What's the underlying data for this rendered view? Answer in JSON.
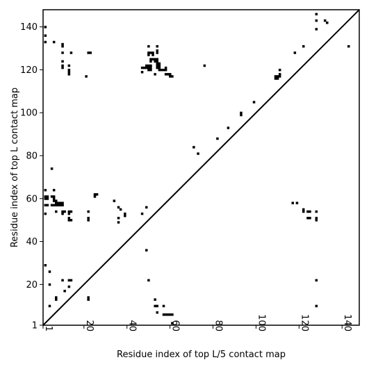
{
  "chart_data": {
    "type": "scatter",
    "title": "",
    "xlabel": "Residue index of top L/5 contact map",
    "ylabel": "Residue index of top L contact map",
    "xlim": [
      1,
      148
    ],
    "ylim": [
      1,
      148
    ],
    "xticks": [
      1,
      20,
      40,
      60,
      80,
      100,
      120,
      140
    ],
    "yticks": [
      1,
      20,
      40,
      60,
      80,
      100,
      120,
      140
    ],
    "diagonal": true,
    "marker": "square",
    "color": "#000000",
    "series": [
      {
        "points": [
          [
            2,
            140
          ],
          [
            2,
            136
          ],
          [
            2,
            133
          ],
          [
            6,
            133
          ],
          [
            10,
            132
          ],
          [
            10,
            131
          ],
          [
            10,
            128
          ],
          [
            10,
            124
          ],
          [
            10,
            122
          ],
          [
            10,
            121
          ],
          [
            13,
            122
          ],
          [
            13,
            120
          ],
          [
            13,
            119
          ],
          [
            13,
            118
          ],
          [
            14,
            128
          ],
          [
            22,
            128
          ],
          [
            23,
            128
          ],
          [
            21,
            117
          ],
          [
            47,
            121
          ],
          [
            48,
            121
          ],
          [
            49,
            121
          ],
          [
            49,
            122
          ],
          [
            50,
            122
          ],
          [
            50,
            121
          ],
          [
            50,
            120
          ],
          [
            51,
            121
          ],
          [
            51,
            120
          ],
          [
            51,
            122
          ],
          [
            50,
            131
          ],
          [
            50,
            128
          ],
          [
            51,
            128
          ],
          [
            52,
            128
          ],
          [
            52,
            127
          ],
          [
            50,
            127
          ],
          [
            51,
            124
          ],
          [
            51,
            125
          ],
          [
            52,
            125
          ],
          [
            53,
            125
          ],
          [
            53,
            124
          ],
          [
            54,
            125
          ],
          [
            54,
            124
          ],
          [
            54,
            123
          ],
          [
            54,
            122
          ],
          [
            54,
            121
          ],
          [
            55,
            123
          ],
          [
            55,
            122
          ],
          [
            55,
            121
          ],
          [
            55,
            120
          ],
          [
            54,
            131
          ],
          [
            54,
            129
          ],
          [
            54,
            128
          ],
          [
            56,
            120
          ],
          [
            57,
            120
          ],
          [
            58,
            120
          ],
          [
            58,
            121
          ],
          [
            58,
            118
          ],
          [
            59,
            118
          ],
          [
            60,
            118
          ],
          [
            60,
            117
          ],
          [
            61,
            117
          ],
          [
            47,
            119
          ],
          [
            53,
            118
          ],
          [
            76,
            122
          ],
          [
            111,
            120
          ],
          [
            111,
            118
          ],
          [
            111,
            117
          ],
          [
            110,
            117
          ],
          [
            110,
            116
          ],
          [
            109,
            116
          ],
          [
            109,
            117
          ],
          [
            99,
            105
          ],
          [
            93,
            100
          ],
          [
            93,
            99
          ],
          [
            87,
            93
          ],
          [
            82,
            88
          ],
          [
            71,
            84
          ],
          [
            73,
            81
          ],
          [
            118,
            128
          ],
          [
            122,
            131
          ],
          [
            128,
            146
          ],
          [
            128,
            143
          ],
          [
            128,
            139
          ],
          [
            132,
            143
          ],
          [
            133,
            142
          ],
          [
            143,
            131
          ],
          [
            2,
            64
          ],
          [
            5,
            74
          ],
          [
            6,
            64
          ],
          [
            2,
            61
          ],
          [
            3,
            61
          ],
          [
            2,
            60
          ],
          [
            3,
            60
          ],
          [
            5,
            61
          ],
          [
            6,
            61
          ],
          [
            6,
            60
          ],
          [
            6,
            59
          ],
          [
            7,
            59
          ],
          [
            7,
            58
          ],
          [
            8,
            58
          ],
          [
            9,
            58
          ],
          [
            10,
            58
          ],
          [
            10,
            57
          ],
          [
            9,
            57
          ],
          [
            8,
            57
          ],
          [
            7,
            57
          ],
          [
            6,
            57
          ],
          [
            5,
            57
          ],
          [
            2,
            57
          ],
          [
            3,
            57
          ],
          [
            7,
            54
          ],
          [
            10,
            54
          ],
          [
            10,
            53
          ],
          [
            11,
            54
          ],
          [
            13,
            54
          ],
          [
            14,
            54
          ],
          [
            13,
            53
          ],
          [
            13,
            51
          ],
          [
            13,
            50
          ],
          [
            14,
            50
          ],
          [
            2,
            53
          ],
          [
            22,
            54
          ],
          [
            22,
            51
          ],
          [
            22,
            50
          ],
          [
            25,
            62
          ],
          [
            26,
            62
          ],
          [
            25,
            61
          ],
          [
            34,
            59
          ],
          [
            36,
            56
          ],
          [
            37,
            55
          ],
          [
            36,
            51
          ],
          [
            36,
            49
          ],
          [
            39,
            53
          ],
          [
            39,
            52
          ],
          [
            47,
            53
          ],
          [
            49,
            56
          ],
          [
            117,
            58
          ],
          [
            119,
            58
          ],
          [
            122,
            55
          ],
          [
            122,
            54
          ],
          [
            124,
            54
          ],
          [
            125,
            54
          ],
          [
            124,
            51
          ],
          [
            125,
            51
          ],
          [
            128,
            54
          ],
          [
            128,
            51
          ],
          [
            128,
            50
          ],
          [
            2,
            29
          ],
          [
            4,
            26
          ],
          [
            4,
            20
          ],
          [
            10,
            22
          ],
          [
            11,
            17
          ],
          [
            13,
            19
          ],
          [
            13,
            22
          ],
          [
            14,
            22
          ],
          [
            7,
            14
          ],
          [
            7,
            13
          ],
          [
            22,
            14
          ],
          [
            22,
            13
          ],
          [
            4,
            10
          ],
          [
            50,
            22
          ],
          [
            49,
            36
          ],
          [
            53,
            13
          ],
          [
            53,
            10
          ],
          [
            54,
            10
          ],
          [
            57,
            10
          ],
          [
            54,
            7
          ],
          [
            57,
            6
          ],
          [
            58,
            6
          ],
          [
            59,
            6
          ],
          [
            60,
            6
          ],
          [
            61,
            6
          ],
          [
            61,
            2
          ],
          [
            128,
            10
          ],
          [
            128,
            22
          ]
        ]
      }
    ]
  }
}
